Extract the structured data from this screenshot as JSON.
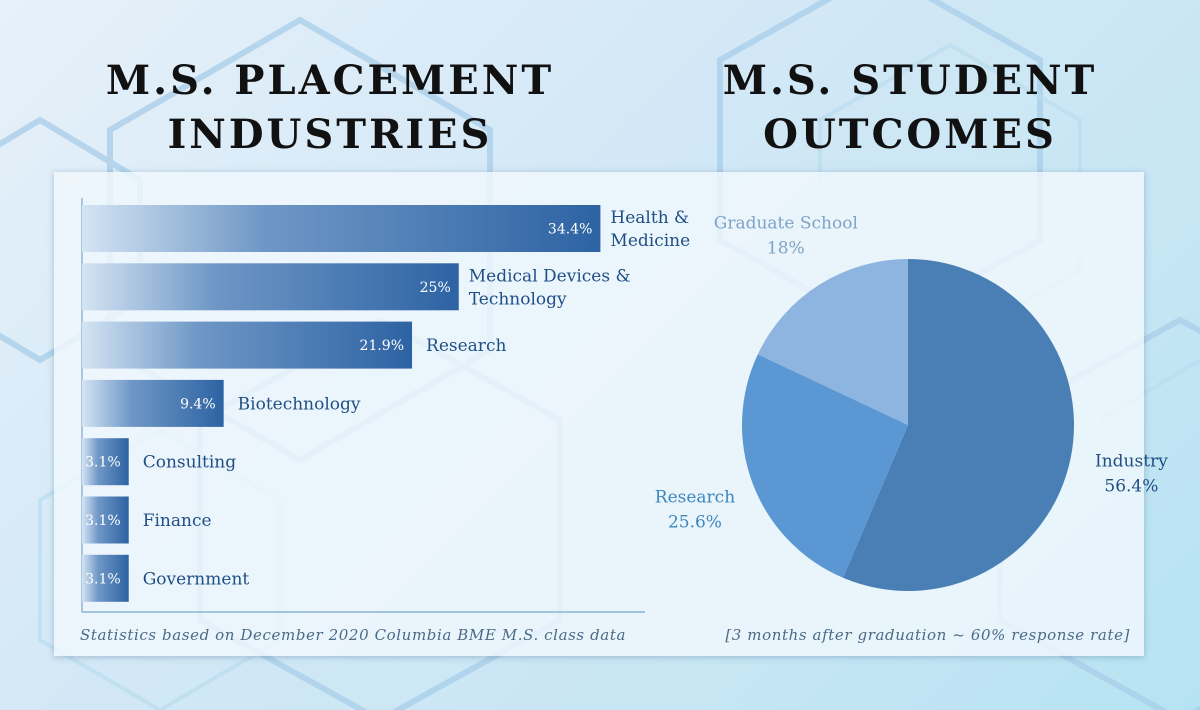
{
  "left_title": [
    "M.S. PLACEMENT",
    "INDUSTRIES"
  ],
  "right_title": [
    "M.S. STUDENT",
    "OUTCOMES"
  ],
  "footnote_left": "Statistics based on December 2020 Columbia BME M.S. class data",
  "footnote_right": "[3 months after graduation ~ 60% response rate]",
  "colors": {
    "bar": "#2d63a3",
    "label": "#1f4e85",
    "pie_industry": "#4a7fb5",
    "pie_research": "#5b97d2",
    "pie_grad": "#8eb5df",
    "grad_label": "#7ea3c6",
    "research_label": "#3d86bf",
    "industry_label": "#1f4e85"
  },
  "chart_data": [
    {
      "type": "bar",
      "orientation": "horizontal",
      "categories": [
        [
          "Health &",
          "Medicine"
        ],
        [
          "Medical Devices &",
          "Technology"
        ],
        [
          "Research"
        ],
        [
          "Biotechnology"
        ],
        [
          "Consulting"
        ],
        [
          "Finance"
        ],
        [
          "Government"
        ]
      ],
      "values": [
        34.4,
        25,
        21.9,
        9.4,
        3.1,
        3.1,
        3.1
      ],
      "value_labels": [
        "34.4%",
        "25%",
        "21.9%",
        "9.4%",
        "3.1%",
        "3.1%",
        "3.1%"
      ],
      "unit": "%"
    },
    {
      "type": "pie",
      "start": "12 o'clock",
      "direction": "clockwise",
      "slices": [
        {
          "label": "Industry",
          "value": 56.4,
          "value_label": "56.4%"
        },
        {
          "label": "Research",
          "value": 25.6,
          "value_label": "25.6%"
        },
        {
          "label": "Graduate School",
          "value": 18,
          "value_label": "18%"
        }
      ]
    }
  ]
}
